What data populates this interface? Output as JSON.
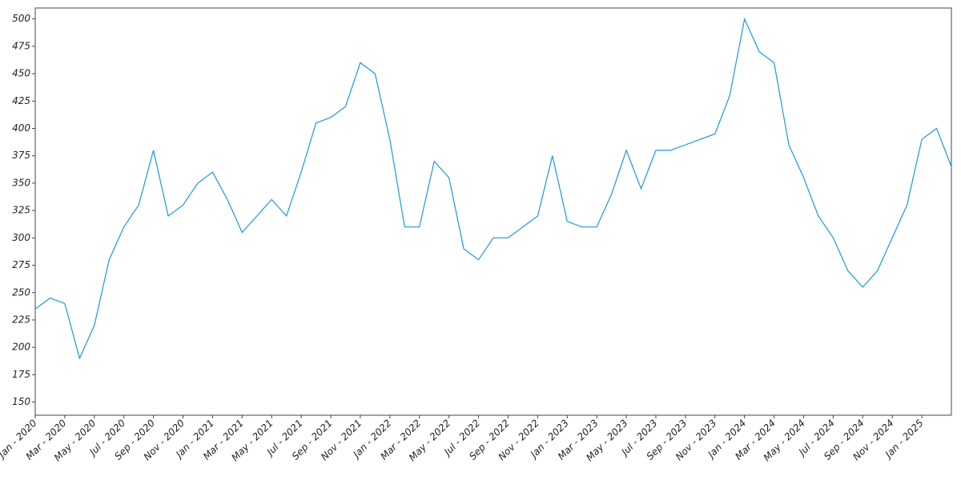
{
  "chart_data": {
    "type": "line",
    "x": [
      "2020-01",
      "2020-02",
      "2020-03",
      "2020-04",
      "2020-05",
      "2020-06",
      "2020-07",
      "2020-08",
      "2020-09",
      "2020-10",
      "2020-11",
      "2020-12",
      "2021-01",
      "2021-02",
      "2021-03",
      "2021-04",
      "2021-05",
      "2021-06",
      "2021-07",
      "2021-08",
      "2021-09",
      "2021-10",
      "2021-11",
      "2021-12",
      "2022-01",
      "2022-02",
      "2022-03",
      "2022-04",
      "2022-05",
      "2022-06",
      "2022-07",
      "2022-08",
      "2022-09",
      "2022-10",
      "2022-11",
      "2022-12",
      "2023-01",
      "2023-02",
      "2023-03",
      "2023-04",
      "2023-05",
      "2023-06",
      "2023-07",
      "2023-08",
      "2023-09",
      "2023-10",
      "2023-11",
      "2023-12",
      "2024-01",
      "2024-02",
      "2024-03",
      "2024-04",
      "2024-05",
      "2024-06",
      "2024-07",
      "2024-08",
      "2024-09",
      "2024-10",
      "2024-11",
      "2024-12",
      "2025-01",
      "2025-02",
      "2025-03"
    ],
    "series": [
      {
        "color": "#1a9ad6",
        "values": [
          235,
          245,
          240,
          190,
          220,
          280,
          310,
          330,
          380,
          320,
          330,
          350,
          360,
          335,
          305,
          320,
          335,
          320,
          360,
          405,
          410,
          420,
          460,
          450,
          390,
          310,
          310,
          370,
          355,
          290,
          280,
          300,
          300,
          310,
          320,
          375,
          315,
          310,
          310,
          340,
          380,
          345,
          380,
          380,
          385,
          390,
          395,
          430,
          500,
          470,
          460,
          385,
          355,
          320,
          300,
          270,
          255,
          270,
          300,
          330,
          390,
          400,
          365
        ]
      }
    ],
    "xlim": [
      "2020-01",
      "2025-03"
    ],
    "xticks": [
      {
        "value": "2020-01",
        "label": "Jan - 2020"
      },
      {
        "value": "2020-03",
        "label": "Mar - 2020"
      },
      {
        "value": "2020-05",
        "label": "May - 2020"
      },
      {
        "value": "2020-07",
        "label": "Jul - 2020"
      },
      {
        "value": "2020-09",
        "label": "Sep - 2020"
      },
      {
        "value": "2020-11",
        "label": "Nov - 2020"
      },
      {
        "value": "2021-01",
        "label": "Jan - 2021"
      },
      {
        "value": "2021-03",
        "label": "Mar - 2021"
      },
      {
        "value": "2021-05",
        "label": "May - 2021"
      },
      {
        "value": "2021-07",
        "label": "Jul - 2021"
      },
      {
        "value": "2021-09",
        "label": "Sep - 2021"
      },
      {
        "value": "2021-11",
        "label": "Nov - 2021"
      },
      {
        "value": "2022-01",
        "label": "Jan - 2022"
      },
      {
        "value": "2022-03",
        "label": "Mar - 2022"
      },
      {
        "value": "2022-05",
        "label": "May - 2022"
      },
      {
        "value": "2022-07",
        "label": "Jul - 2022"
      },
      {
        "value": "2022-09",
        "label": "Sep - 2022"
      },
      {
        "value": "2022-11",
        "label": "Nov - 2022"
      },
      {
        "value": "2023-01",
        "label": "Jan - 2023"
      },
      {
        "value": "2023-03",
        "label": "Mar - 2023"
      },
      {
        "value": "2023-05",
        "label": "May - 2023"
      },
      {
        "value": "2023-07",
        "label": "Jul - 2023"
      },
      {
        "value": "2023-09",
        "label": "Sep - 2023"
      },
      {
        "value": "2023-11",
        "label": "Nov - 2023"
      },
      {
        "value": "2024-01",
        "label": "Jan - 2024"
      },
      {
        "value": "2024-03",
        "label": "Mar - 2024"
      },
      {
        "value": "2024-05",
        "label": "May - 2024"
      },
      {
        "value": "2024-07",
        "label": "Jul - 2024"
      },
      {
        "value": "2024-09",
        "label": "Sep - 2024"
      },
      {
        "value": "2024-11",
        "label": "Nov - 2024"
      },
      {
        "value": "2025-01",
        "label": "Jan - 2025"
      }
    ],
    "ylim": [
      138,
      510
    ],
    "yticks": [
      150,
      175,
      200,
      225,
      250,
      275,
      300,
      325,
      350,
      375,
      400,
      425,
      450,
      475,
      500
    ],
    "grid": false
  }
}
